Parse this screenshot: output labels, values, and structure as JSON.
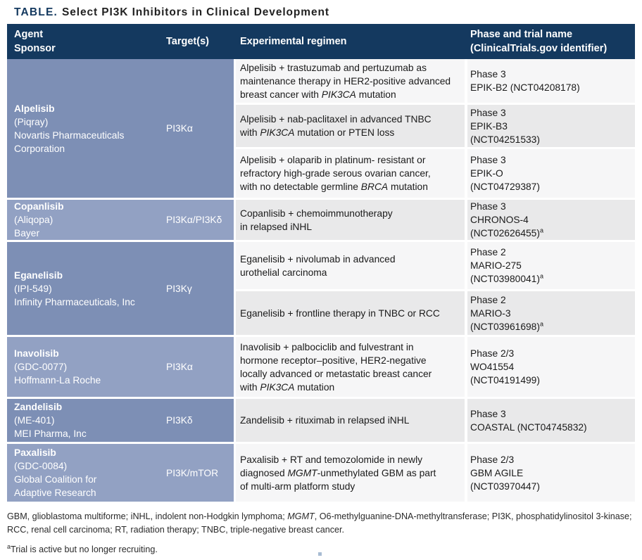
{
  "title": {
    "label": "TABLE.",
    "text": "Select PI3K Inhibitors in Clinical Development"
  },
  "palette": {
    "header_bg": "#14395f",
    "group_dark": "#7d8fb5",
    "group_light": "#92a1c3",
    "row_light": "#f6f6f7",
    "row_gray": "#e9e9ea",
    "title_accent": "#14395f",
    "body_text": "#1a1a1a",
    "footer_text": "#2a2a2a",
    "bottom_mark": "#a8bcd3"
  },
  "header": {
    "col_agent": [
      [
        "Agent"
      ],
      [
        "Sponsor"
      ]
    ],
    "col_target": "Target(s)",
    "col_regimen": "Experimental regimen",
    "col_phase": [
      [
        "Phase and trial name"
      ],
      [
        "(ClinicalTrials.gov identifier)"
      ]
    ]
  },
  "groups": [
    {
      "agent": {
        "name": "Alpelisib",
        "details": [
          [
            "(Piqray)"
          ],
          [
            "Novartis Pharmaceuticals"
          ],
          [
            "Corporation"
          ]
        ]
      },
      "target": "PI3Kα",
      "rows": [
        {
          "regimen_lines": [
            [
              "Alpelisib + trastuzumab and pertuzumab as"
            ],
            [
              "maintenance therapy in HER2-positive advanced"
            ],
            [
              "breast cancer with ",
              [
                "PIK3CA",
                "i"
              ],
              " mutation"
            ]
          ],
          "phase_lines": [
            [
              "Phase 3"
            ],
            [
              "EPIK-B2 (NCT04208178)"
            ]
          ]
        },
        {
          "regimen_lines": [
            [
              "Alpelisib + nab-paclitaxel in advanced TNBC"
            ],
            [
              "with ",
              [
                "PIK3CA",
                "i"
              ],
              " mutation or PTEN loss"
            ]
          ],
          "phase_lines": [
            [
              "Phase 3"
            ],
            [
              "EPIK-B3"
            ],
            [
              "(NCT04251533)"
            ]
          ]
        },
        {
          "regimen_lines": [
            [
              "Alpelisib + olaparib in platinum- resistant or"
            ],
            [
              "refractory high-grade serous ovarian cancer,"
            ],
            [
              "with no detectable germline ",
              [
                "BRCA",
                "i"
              ],
              " mutation"
            ]
          ],
          "phase_lines": [
            [
              "Phase 3"
            ],
            [
              "EPIK-O"
            ],
            [
              "(NCT04729387)"
            ]
          ]
        }
      ]
    },
    {
      "agent": {
        "name": "Copanlisib",
        "details": [
          [
            "(Aliqopa)"
          ],
          [
            "Bayer"
          ]
        ]
      },
      "target": "PI3Kα/PI3Kδ",
      "rows": [
        {
          "regimen_lines": [
            [
              "Copanlisib + chemoimmunotherapy"
            ],
            [
              "in relapsed iNHL"
            ]
          ],
          "phase_lines": [
            [
              "Phase 3"
            ],
            [
              "CHRONOS-4"
            ],
            [
              "(NCT02626455)",
              [
                "a",
                "sup"
              ]
            ]
          ]
        }
      ]
    },
    {
      "agent": {
        "name": "Eganelisib",
        "details": [
          [
            "(IPI-549)"
          ],
          [
            "Infinity Pharmaceuticals, Inc"
          ]
        ]
      },
      "target": "PI3Kγ",
      "rows": [
        {
          "regimen_lines": [
            [
              "Eganelisib + nivolumab in advanced"
            ],
            [
              "urothelial carcinoma"
            ]
          ],
          "phase_lines": [
            [
              "Phase 2"
            ],
            [
              "MARIO-275"
            ],
            [
              "(NCT03980041)",
              [
                "a",
                "sup"
              ]
            ]
          ]
        },
        {
          "regimen_lines": [
            [
              "Eganelisib + frontline therapy in TNBC or RCC"
            ]
          ],
          "phase_lines": [
            [
              "Phase 2"
            ],
            [
              "MARIO-3"
            ],
            [
              "(NCT03961698)",
              [
                "a",
                "sup"
              ]
            ]
          ]
        }
      ]
    },
    {
      "agent": {
        "name": "Inavolisib",
        "details": [
          [
            "(GDC-0077)"
          ],
          [
            "Hoffmann-La Roche"
          ]
        ]
      },
      "target": "PI3Kα",
      "rows": [
        {
          "regimen_lines": [
            [
              "Inavolisib + palbociclib and fulvestrant in"
            ],
            [
              "hormone receptor–positive, HER2-negative"
            ],
            [
              "locally advanced or metastatic breast cancer"
            ],
            [
              "with ",
              [
                "PIK3CA",
                "i"
              ],
              " mutation"
            ]
          ],
          "phase_lines": [
            [
              "Phase 2/3"
            ],
            [
              "WO41554"
            ],
            [
              "(NCT04191499)"
            ]
          ]
        }
      ]
    },
    {
      "agent": {
        "name": "Zandelisib",
        "details": [
          [
            "(ME-401)"
          ],
          [
            "MEI Pharma, Inc"
          ]
        ]
      },
      "target": "PI3Kδ",
      "rows": [
        {
          "regimen_lines": [
            [
              "Zandelisib + rituximab in relapsed iNHL"
            ]
          ],
          "phase_lines": [
            [
              "Phase 3"
            ],
            [
              "COASTAL (NCT04745832)"
            ]
          ]
        }
      ]
    },
    {
      "agent": {
        "name": "Paxalisib",
        "details": [
          [
            "(GDC-0084)"
          ],
          [
            "Global Coalition for"
          ],
          [
            "Adaptive Research"
          ]
        ]
      },
      "target": "PI3K/mTOR",
      "rows": [
        {
          "regimen_lines": [
            [
              "Paxalisib + RT and temozolomide in newly"
            ],
            [
              "diagnosed ",
              [
                "MGMT",
                "i"
              ],
              "-unmethylated GBM as part"
            ],
            [
              "of multi-arm platform study"
            ]
          ],
          "phase_lines": [
            [
              "Phase 2/3"
            ],
            [
              "GBM AGILE"
            ],
            [
              "(NCT03970447)"
            ]
          ]
        }
      ]
    }
  ],
  "footer": {
    "abbreviations": [
      "GBM, glioblastoma multiforme; iNHL, indolent non-Hodgkin lymphoma; ",
      [
        "MGMT",
        "i"
      ],
      ", O6-methylguanine-DNA-methyltransferase; PI3K, phosphatidylinositol 3-kinase; RCC, renal cell carcinoma; RT, radiation therapy; TNBC, triple-negative breast cancer."
    ],
    "note": [
      [
        "a",
        "sup"
      ],
      "Trial is active but no longer recruiting."
    ]
  }
}
